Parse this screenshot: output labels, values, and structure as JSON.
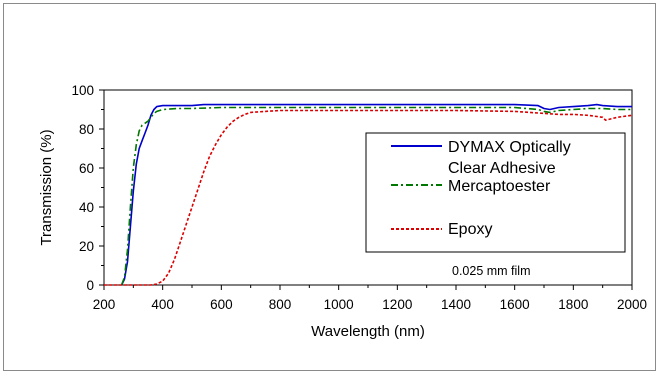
{
  "chart_data": {
    "type": "line",
    "xlabel": "Wavelength (nm)",
    "ylabel": "Transmission (%)",
    "xlim": [
      200,
      2000
    ],
    "ylim": [
      0,
      100
    ],
    "xticks": [
      200,
      400,
      600,
      800,
      1000,
      1200,
      1400,
      1600,
      1800,
      2000
    ],
    "yticks": [
      0,
      20,
      40,
      60,
      80,
      100
    ],
    "grid": false,
    "legend_position": "right",
    "annotation": "0.025 mm film",
    "series": [
      {
        "name": "DYMAX Optically Clear Adhesive",
        "legend_lines": [
          "DYMAX Optically",
          "Clear Adhesive"
        ],
        "color": "#0000cc",
        "style": "solid",
        "x": [
          260,
          270,
          280,
          290,
          300,
          310,
          320,
          330,
          340,
          350,
          360,
          370,
          380,
          400,
          450,
          500,
          540,
          600,
          800,
          1000,
          1200,
          1400,
          1600,
          1680,
          1700,
          1720,
          1750,
          1800,
          1850,
          1880,
          1900,
          1950,
          2000
        ],
        "y": [
          0,
          3,
          12,
          30,
          48,
          62,
          70,
          74,
          78,
          82,
          87,
          90,
          91.5,
          92,
          92,
          92,
          92.5,
          92.5,
          92.5,
          92.5,
          92.5,
          92.5,
          92.5,
          92,
          90.5,
          90,
          91,
          91.5,
          92,
          92.5,
          92,
          91.5,
          91.5
        ]
      },
      {
        "name": "Mercaptoester",
        "color": "#007700",
        "style": "dash-dot",
        "x": [
          260,
          270,
          280,
          290,
          300,
          310,
          320,
          330,
          340,
          350,
          360,
          370,
          380,
          400,
          450,
          500,
          600,
          800,
          1000,
          1200,
          1400,
          1600,
          1680,
          1700,
          1720,
          1750,
          1800,
          1850,
          1900,
          1950,
          2000
        ],
        "y": [
          0,
          4,
          18,
          40,
          60,
          72,
          79,
          82,
          83,
          84,
          86,
          88,
          89,
          90,
          90.5,
          90.5,
          91,
          91,
          91,
          91,
          91,
          91,
          90,
          89,
          88.5,
          89.5,
          90,
          90.5,
          90.5,
          90,
          90
        ]
      },
      {
        "name": "Epoxy",
        "color": "#dd0000",
        "style": "dotted",
        "x": [
          200,
          360,
          380,
          400,
          420,
          440,
          460,
          480,
          500,
          520,
          540,
          560,
          580,
          600,
          620,
          640,
          660,
          680,
          700,
          750,
          800,
          900,
          1000,
          1200,
          1400,
          1600,
          1700,
          1750,
          1800,
          1850,
          1900,
          1910,
          1950,
          2000
        ],
        "y": [
          0,
          0,
          0.5,
          2,
          6,
          13,
          22,
          31,
          40,
          49,
          58,
          66,
          72,
          77,
          81,
          84,
          86,
          87.5,
          88.5,
          89,
          89.5,
          89.5,
          89.5,
          89.5,
          89.5,
          89,
          88,
          87.5,
          87.5,
          87,
          86,
          84.5,
          86,
          87
        ]
      }
    ]
  }
}
